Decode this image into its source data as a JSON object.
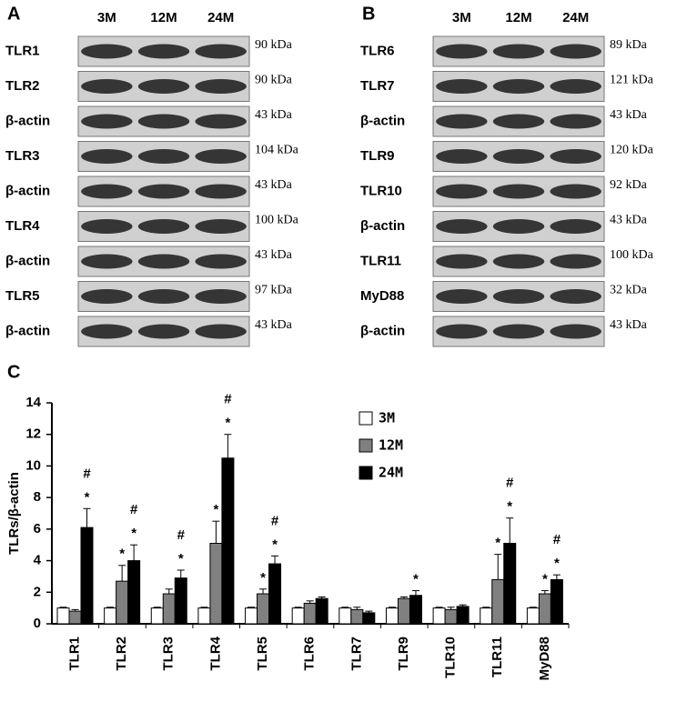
{
  "panel_a": {
    "label": "A",
    "columns": [
      "3M",
      "12M",
      "24M"
    ],
    "rows": [
      {
        "name": "TLR1",
        "size": "90 kDa"
      },
      {
        "name": "TLR2",
        "size": "90 kDa"
      },
      {
        "name": "β-actin",
        "size": "43 kDa"
      },
      {
        "name": "TLR3",
        "size": "104 kDa"
      },
      {
        "name": "β-actin",
        "size": "43 kDa"
      },
      {
        "name": "TLR4",
        "size": "100 kDa"
      },
      {
        "name": "β-actin",
        "size": "43 kDa"
      },
      {
        "name": "TLR5",
        "size": "97 kDa"
      },
      {
        "name": "β-actin",
        "size": "43 kDa"
      }
    ]
  },
  "panel_b": {
    "label": "B",
    "columns": [
      "3M",
      "12M",
      "24M"
    ],
    "rows": [
      {
        "name": "TLR6",
        "size": "89 kDa"
      },
      {
        "name": "TLR7",
        "size": "121 kDa"
      },
      {
        "name": "β-actin",
        "size": "43 kDa"
      },
      {
        "name": "TLR9",
        "size": "120 kDa"
      },
      {
        "name": "TLR10",
        "size": "92 kDa"
      },
      {
        "name": "β-actin",
        "size": "43 kDa"
      },
      {
        "name": "TLR11",
        "size": "100 kDa"
      },
      {
        "name": "MyD88",
        "size": "32 kDa"
      },
      {
        "name": "β-actin",
        "size": "43 kDa"
      }
    ]
  },
  "chart_data": {
    "type": "bar",
    "label": "C",
    "ylabel": "TLRs/β-actin",
    "categories": [
      "TLR1",
      "TLR2",
      "TLR3",
      "TLR4",
      "TLR5",
      "TLR6",
      "TLR7",
      "TLR9",
      "TLR10",
      "TLR11",
      "MyD88"
    ],
    "ylim": [
      0,
      14
    ],
    "yticks": [
      0,
      2,
      4,
      6,
      8,
      10,
      12,
      14
    ],
    "series": [
      {
        "name": "3M",
        "color": "#ffffff",
        "values": [
          1,
          1,
          1,
          1,
          1,
          1,
          1,
          1,
          1,
          1,
          1
        ],
        "errors": [
          0.05,
          0.05,
          0.05,
          0.05,
          0.05,
          0.05,
          0.05,
          0.05,
          0.05,
          0.05,
          0.05
        ]
      },
      {
        "name": "12M",
        "color": "#808080",
        "values": [
          0.8,
          2.7,
          1.9,
          5.1,
          1.9,
          1.3,
          0.9,
          1.6,
          0.9,
          2.8,
          1.9
        ],
        "errors": [
          0.1,
          1.0,
          0.3,
          1.4,
          0.3,
          0.15,
          0.15,
          0.1,
          0.15,
          1.6,
          0.2
        ],
        "annotations": [
          null,
          [
            "*"
          ],
          null,
          [
            "*"
          ],
          [
            "*"
          ],
          null,
          null,
          null,
          null,
          [
            "*"
          ],
          [
            "*"
          ]
        ]
      },
      {
        "name": "24M",
        "color": "#000000",
        "values": [
          6.1,
          4.0,
          2.9,
          10.5,
          3.8,
          1.6,
          0.7,
          1.8,
          1.1,
          5.1,
          2.8
        ],
        "errors": [
          1.2,
          1.0,
          0.5,
          1.5,
          0.5,
          0.1,
          0.1,
          0.3,
          0.1,
          1.6,
          0.3
        ],
        "annotations": [
          [
            "*",
            "#"
          ],
          [
            "*",
            "#"
          ],
          [
            "*",
            "#"
          ],
          [
            "*",
            "#"
          ],
          [
            "*",
            "#"
          ],
          null,
          null,
          [
            "*"
          ],
          null,
          [
            "*",
            "#"
          ],
          [
            "*",
            "#"
          ]
        ]
      }
    ]
  }
}
